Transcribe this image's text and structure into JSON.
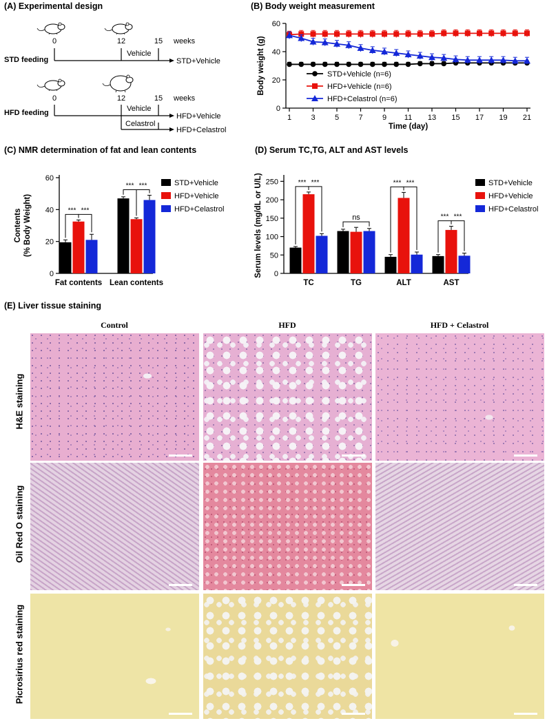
{
  "panels": {
    "A": {
      "title": "(A) Experimental design",
      "std_group": {
        "label": "STD feeding",
        "ticks": [
          "0",
          "12",
          "15"
        ],
        "unit": "weeks",
        "treatment": "Vehicle",
        "outcome": "STD+Vehicle"
      },
      "hfd_group": {
        "label": "HFD feeding",
        "ticks": [
          "0",
          "12",
          "15"
        ],
        "unit": "weeks",
        "treatments": [
          "Vehicle",
          "Celastrol"
        ],
        "outcomes": [
          "HFD+Vehicle",
          "HFD+Celastrol"
        ]
      }
    },
    "B": {
      "title": "(B) Body weight measurement"
    },
    "C": {
      "title": "(C) NMR determination of fat and lean contents"
    },
    "D": {
      "title": "(D) Serum TC,TG, ALT and AST levels"
    },
    "E": {
      "title": "(E) Liver tissue staining",
      "columns": [
        "Control",
        "HFD",
        "HFD + Celastrol"
      ],
      "rows": [
        "H&E staining",
        "Oil Red O staining",
        "Picrosirius red staining"
      ]
    }
  },
  "colors": {
    "std": "#000000",
    "hfd": "#e8120c",
    "celastrol": "#1428d8"
  },
  "chart_data": [
    {
      "panel": "B",
      "type": "line",
      "xlabel": "Time  (day)",
      "ylabel": "Body weight (g)",
      "x_ticks": [
        1,
        3,
        5,
        7,
        9,
        11,
        13,
        15,
        17,
        19,
        21
      ],
      "y_ticks": [
        0,
        20,
        40,
        60
      ],
      "xlim": [
        1,
        21
      ],
      "ylim": [
        0,
        60
      ],
      "legend": "inside-bottom-right",
      "series": [
        {
          "name": "STD+Vehicle (n=6)",
          "color": "#000000",
          "marker": "circle",
          "x": [
            1,
            2,
            3,
            4,
            5,
            6,
            7,
            8,
            9,
            10,
            11,
            12,
            13,
            14,
            15,
            16,
            17,
            18,
            19,
            20,
            21
          ],
          "y": [
            31,
            31,
            31,
            31,
            31,
            31,
            31,
            31,
            31,
            31,
            31,
            31.5,
            31.5,
            31.5,
            32,
            32,
            32,
            32,
            32,
            32,
            32
          ],
          "err": 1.5
        },
        {
          "name": "HFD+Vehicle (n=6)",
          "color": "#e8120c",
          "marker": "square",
          "x": [
            1,
            2,
            3,
            4,
            5,
            6,
            7,
            8,
            9,
            10,
            11,
            12,
            13,
            14,
            15,
            16,
            17,
            18,
            19,
            20,
            21
          ],
          "y": [
            52,
            52.5,
            52.5,
            52.5,
            52.5,
            52.5,
            52.5,
            52.5,
            52.5,
            52.5,
            52.5,
            52.5,
            52.5,
            53,
            53,
            53,
            53,
            53,
            53,
            53,
            53
          ],
          "err": 2.5
        },
        {
          "name": "HFD+Celastrol (n=6)",
          "color": "#1428d8",
          "marker": "triangle",
          "x": [
            1,
            2,
            3,
            4,
            5,
            6,
            7,
            8,
            9,
            10,
            11,
            12,
            13,
            14,
            15,
            16,
            17,
            18,
            19,
            20,
            21
          ],
          "y": [
            51.5,
            49.5,
            47,
            46.5,
            45.5,
            44.5,
            42.5,
            41,
            40,
            39,
            38,
            37,
            36,
            35.5,
            34.5,
            34,
            34,
            34,
            34,
            33.5,
            33.5
          ],
          "err": 2.5
        }
      ]
    },
    {
      "panel": "C",
      "type": "bar",
      "ylabel": "Contents\n(% Body Weight)",
      "categories": [
        "Fat contents",
        "Lean contents"
      ],
      "y_ticks": [
        0,
        20,
        40,
        60
      ],
      "ylim": [
        0,
        60
      ],
      "legend": "right",
      "series": [
        {
          "name": "STD+Vehicle",
          "color": "#000000",
          "values": [
            19.5,
            47
          ],
          "err": [
            1.5,
            1
          ]
        },
        {
          "name": "HFD+Vehicle",
          "color": "#e8120c",
          "values": [
            32.5,
            34
          ],
          "err": [
            1,
            0.8
          ]
        },
        {
          "name": "HFD+Celastrol",
          "color": "#1428d8",
          "values": [
            21,
            46
          ],
          "err": [
            3.5,
            3
          ]
        }
      ],
      "annotations": [
        {
          "category": "Fat contents",
          "pair": [
            0,
            1
          ],
          "text": "***"
        },
        {
          "category": "Fat contents",
          "pair": [
            1,
            2
          ],
          "text": "***"
        },
        {
          "category": "Lean contents",
          "pair": [
            0,
            1
          ],
          "text": "***"
        },
        {
          "category": "Lean contents",
          "pair": [
            1,
            2
          ],
          "text": "***"
        }
      ]
    },
    {
      "panel": "D",
      "type": "bar",
      "ylabel": "Serum levels (mg/dL or U/L)",
      "categories": [
        "TC",
        "TG",
        "ALT",
        "AST"
      ],
      "y_ticks": [
        0,
        50,
        100,
        150,
        200,
        250
      ],
      "ylim": [
        0,
        260
      ],
      "legend": "right",
      "series": [
        {
          "name": "STD+Vehicle",
          "color": "#000000",
          "values": [
            70,
            115,
            45,
            47
          ],
          "err": [
            3,
            5,
            6,
            4
          ]
        },
        {
          "name": "HFD+Vehicle",
          "color": "#e8120c",
          "values": [
            215,
            113,
            205,
            118
          ],
          "err": [
            6,
            12,
            15,
            10
          ]
        },
        {
          "name": "HFD+Celastrol",
          "color": "#1428d8",
          "values": [
            102,
            115,
            51,
            48
          ],
          "err": [
            6,
            7,
            7,
            7
          ]
        }
      ],
      "annotations": [
        {
          "category": "TC",
          "pair": [
            0,
            1
          ],
          "text": "***"
        },
        {
          "category": "TC",
          "pair": [
            1,
            2
          ],
          "text": "***"
        },
        {
          "category": "TG",
          "pair": [
            0,
            2
          ],
          "text": "ns"
        },
        {
          "category": "ALT",
          "pair": [
            0,
            1
          ],
          "text": "***"
        },
        {
          "category": "ALT",
          "pair": [
            1,
            2
          ],
          "text": "***"
        },
        {
          "category": "AST",
          "pair": [
            0,
            1
          ],
          "text": "***"
        },
        {
          "category": "AST",
          "pair": [
            1,
            2
          ],
          "text": "***"
        }
      ]
    }
  ]
}
